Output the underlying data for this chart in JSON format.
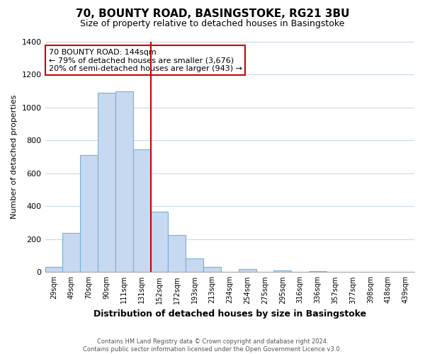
{
  "title": "70, BOUNTY ROAD, BASINGSTOKE, RG21 3BU",
  "subtitle": "Size of property relative to detached houses in Basingstoke",
  "xlabel": "Distribution of detached houses by size in Basingstoke",
  "ylabel": "Number of detached properties",
  "bar_labels": [
    "29sqm",
    "49sqm",
    "70sqm",
    "90sqm",
    "111sqm",
    "131sqm",
    "152sqm",
    "172sqm",
    "193sqm",
    "213sqm",
    "234sqm",
    "254sqm",
    "275sqm",
    "295sqm",
    "316sqm",
    "336sqm",
    "357sqm",
    "377sqm",
    "398sqm",
    "418sqm",
    "439sqm"
  ],
  "bar_values": [
    30,
    240,
    710,
    1090,
    1100,
    745,
    365,
    225,
    85,
    30,
    0,
    20,
    0,
    10,
    0,
    5,
    0,
    0,
    0,
    0,
    0
  ],
  "bar_color": "#c6d9f0",
  "bar_edge_color": "#7bafd4",
  "vline_x": 5.5,
  "vline_color": "#cc0000",
  "annotation_title": "70 BOUNTY ROAD: 144sqm",
  "annotation_line1": "← 79% of detached houses are smaller (3,676)",
  "annotation_line2": "20% of semi-detached houses are larger (943) →",
  "annotation_box_edge": "#cc0000",
  "ylim": [
    0,
    1400
  ],
  "yticks": [
    0,
    200,
    400,
    600,
    800,
    1000,
    1200,
    1400
  ],
  "footer_line1": "Contains HM Land Registry data © Crown copyright and database right 2024.",
  "footer_line2": "Contains public sector information licensed under the Open Government Licence v3.0.",
  "bg_color": "#ffffff",
  "grid_color": "#c8d8e8"
}
